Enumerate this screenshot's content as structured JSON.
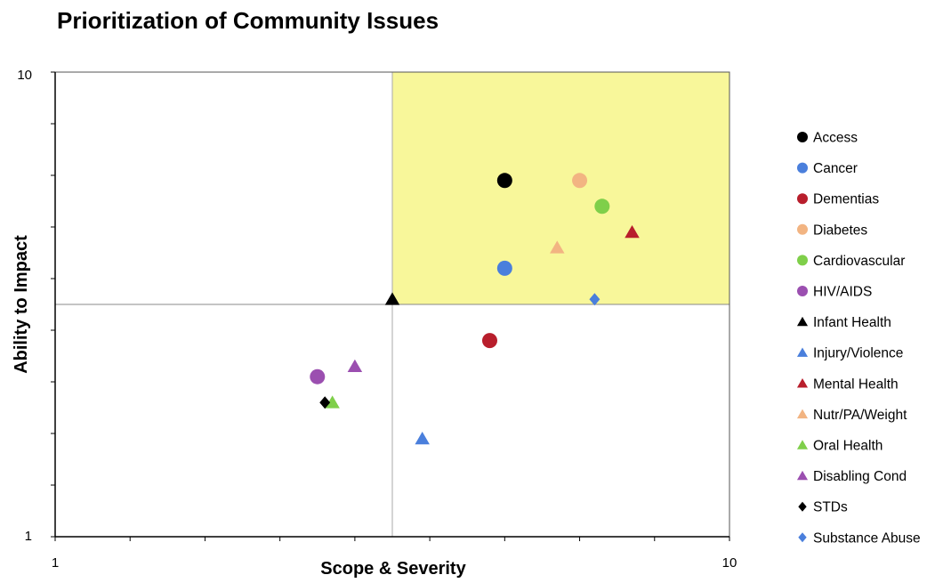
{
  "chart_data": {
    "type": "scatter",
    "title": "Prioritization of Community Issues",
    "xlabel": "Scope & Severity",
    "ylabel": "Ability to Impact",
    "xlim": [
      1,
      10
    ],
    "ylim": [
      1,
      10
    ],
    "x_tick_labels": [
      "1",
      "10"
    ],
    "y_tick_labels": [
      "1",
      "10"
    ],
    "divider": {
      "x": 5.5,
      "y": 5.5
    },
    "priority_quadrant_color": "#f8f79a",
    "legend_position": "right",
    "grid": false,
    "series": [
      {
        "name": "Access",
        "marker": "circle",
        "color": "#000000",
        "x": 7.0,
        "y": 7.9
      },
      {
        "name": "Cancer",
        "marker": "circle",
        "color": "#4a7fdc",
        "x": 7.0,
        "y": 6.2
      },
      {
        "name": "Dementias",
        "marker": "circle",
        "color": "#b81e2c",
        "x": 6.8,
        "y": 4.8
      },
      {
        "name": "Diabetes",
        "marker": "circle",
        "color": "#f2b482",
        "x": 8.0,
        "y": 7.9
      },
      {
        "name": "Cardiovascular",
        "marker": "circle",
        "color": "#7fcf4a",
        "x": 8.3,
        "y": 7.4
      },
      {
        "name": "HIV/AIDS",
        "marker": "circle",
        "color": "#9b4fb0",
        "x": 4.5,
        "y": 4.1
      },
      {
        "name": "Infant Health",
        "marker": "triangle",
        "color": "#000000",
        "x": 5.5,
        "y": 5.6
      },
      {
        "name": "Injury/Violence",
        "marker": "triangle",
        "color": "#4a7fdc",
        "x": 5.9,
        "y": 2.9
      },
      {
        "name": "Mental Health",
        "marker": "triangle",
        "color": "#b81e2c",
        "x": 8.7,
        "y": 6.9
      },
      {
        "name": "Nutr/PA/Weight",
        "marker": "triangle",
        "color": "#f2b482",
        "x": 7.7,
        "y": 6.6
      },
      {
        "name": "Oral Health",
        "marker": "triangle",
        "color": "#7fcf4a",
        "x": 4.7,
        "y": 3.6
      },
      {
        "name": "Disabling Cond",
        "marker": "triangle",
        "color": "#9b4fb0",
        "x": 5.0,
        "y": 4.3
      },
      {
        "name": "STDs",
        "marker": "diamond",
        "color": "#000000",
        "x": 4.6,
        "y": 3.6
      },
      {
        "name": "Substance Abuse",
        "marker": "diamond",
        "color": "#4a7fdc",
        "x": 8.2,
        "y": 5.6
      }
    ]
  }
}
